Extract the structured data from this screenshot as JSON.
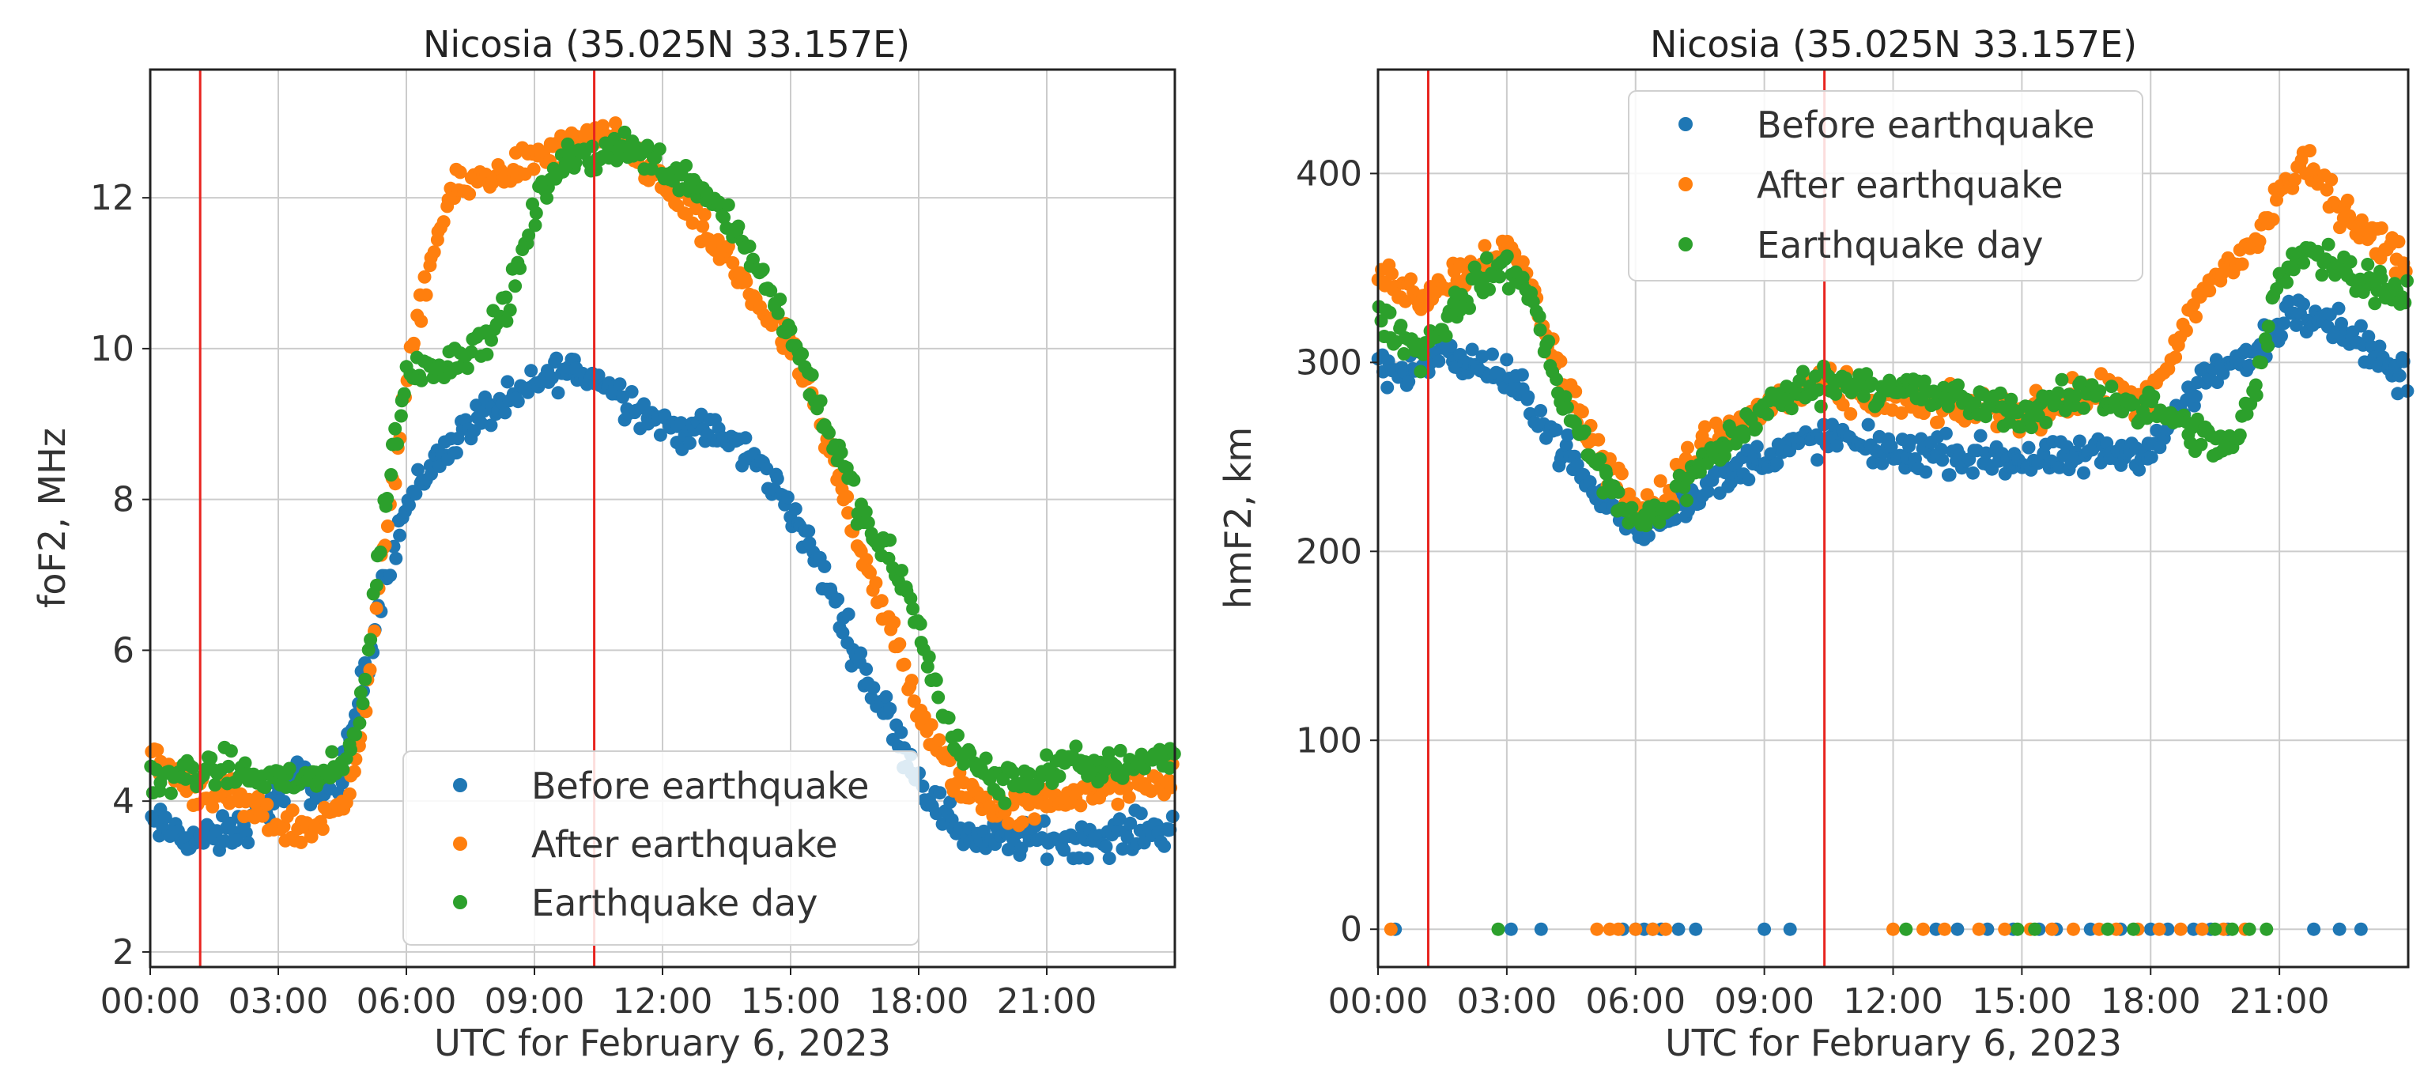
{
  "colors": {
    "before": "#1f77b4",
    "after": "#ff7f0e",
    "day": "#2ca02c",
    "event_line": "#e8241f",
    "grid": "#cccccc",
    "axes": "#222222"
  },
  "chart_data": [
    {
      "type": "scatter",
      "title": "Nicosia (35.025N 33.157E)",
      "xlabel": "UTC for February 6, 2023",
      "ylabel": "foF2, MHz",
      "xlim": [
        0,
        24
      ],
      "ylim": [
        1.8,
        13.7
      ],
      "x_ticks": [
        0,
        3,
        6,
        9,
        12,
        15,
        18,
        21
      ],
      "x_tick_labels": [
        "00:00",
        "03:00",
        "06:00",
        "09:00",
        "12:00",
        "15:00",
        "18:00",
        "21:00"
      ],
      "y_ticks": [
        2,
        4,
        6,
        8,
        10,
        12
      ],
      "y_tick_labels": [
        "2",
        "4",
        "6",
        "8",
        "10",
        "12"
      ],
      "grid": true,
      "legend_position": "lower-right",
      "vlines": [
        1.17,
        10.4
      ],
      "series": [
        {
          "name": "Before earthquake",
          "color_key": "before",
          "x": [
            0,
            0.5,
            1,
            1.5,
            2,
            2.5,
            3,
            3.5,
            4,
            4.5,
            5,
            5.5,
            6,
            6.5,
            7,
            7.5,
            8,
            8.5,
            9,
            9.5,
            10,
            10.5,
            11,
            11.5,
            12,
            12.5,
            13,
            13.5,
            14,
            14.5,
            15,
            15.5,
            16,
            16.5,
            17,
            17.5,
            18,
            18.5,
            19,
            19.5,
            20,
            20.5,
            21,
            21.5,
            22,
            22.5,
            23,
            23.5,
            24
          ],
          "y": [
            3.7,
            3.6,
            3.5,
            3.5,
            3.6,
            3.8,
            4.1,
            4.3,
            4.1,
            4.4,
            5.6,
            7.0,
            7.9,
            8.4,
            8.7,
            9.0,
            9.2,
            9.3,
            9.5,
            9.7,
            9.7,
            9.6,
            9.4,
            9.2,
            9.0,
            8.9,
            8.9,
            8.8,
            8.6,
            8.3,
            7.9,
            7.3,
            6.7,
            6.0,
            5.4,
            4.9,
            4.3,
            3.9,
            3.6,
            3.5,
            3.5,
            3.5,
            3.5,
            3.5,
            3.5,
            3.5,
            3.6,
            3.6,
            3.7
          ]
        },
        {
          "name": "After earthquake",
          "color_key": "after",
          "x": [
            0,
            0.5,
            1,
            1.5,
            2,
            2.5,
            3,
            3.5,
            4,
            4.5,
            5,
            5.5,
            6,
            6.5,
            7,
            7.5,
            8,
            8.5,
            9,
            9.5,
            10,
            10.5,
            11,
            11.5,
            12,
            12.5,
            13,
            13.5,
            14,
            14.5,
            15,
            15.5,
            16,
            16.5,
            17,
            17.5,
            18,
            18.5,
            19,
            19.5,
            20,
            20.5,
            21,
            21.5,
            22,
            22.5,
            23,
            23.5,
            24
          ],
          "y": [
            4.6,
            4.4,
            4.2,
            4.1,
            4.0,
            3.8,
            3.7,
            3.6,
            3.7,
            4.0,
            5.0,
            7.5,
            9.5,
            11.0,
            12.0,
            12.2,
            12.3,
            12.4,
            12.5,
            12.6,
            12.7,
            12.8,
            12.7,
            12.5,
            12.2,
            11.9,
            11.5,
            11.2,
            10.8,
            10.4,
            10.0,
            9.3,
            8.5,
            7.6,
            6.8,
            6.0,
            5.2,
            4.6,
            4.2,
            4.0,
            3.9,
            3.9,
            4.0,
            4.1,
            4.1,
            4.2,
            4.2,
            4.2,
            4.3
          ]
        },
        {
          "name": "Earthquake day",
          "color_key": "day",
          "x": [
            0,
            0.5,
            1,
            1.5,
            2,
            2.5,
            3,
            3.5,
            4,
            4.5,
            5,
            5.5,
            6,
            6.5,
            7,
            7.5,
            8,
            8.5,
            9,
            9.5,
            10,
            10.5,
            11,
            11.5,
            12,
            12.5,
            13,
            13.5,
            14,
            14.5,
            15,
            15.5,
            16,
            16.5,
            17,
            17.5,
            18,
            18.5,
            19,
            19.5,
            20,
            20.5,
            21,
            21.5,
            22,
            22.5,
            23,
            23.5,
            24
          ],
          "y": [
            4.3,
            4.3,
            4.4,
            4.4,
            4.4,
            4.3,
            4.3,
            4.3,
            4.3,
            4.4,
            5.4,
            8.0,
            9.6,
            9.8,
            9.8,
            10.0,
            10.2,
            10.8,
            11.8,
            12.4,
            12.5,
            12.6,
            12.7,
            12.6,
            12.4,
            12.3,
            12.1,
            11.8,
            11.3,
            10.8,
            10.2,
            9.5,
            8.8,
            8.0,
            7.4,
            7.1,
            6.3,
            5.3,
            4.6,
            4.4,
            4.2,
            4.3,
            4.4,
            4.5,
            4.4,
            4.5,
            4.5,
            4.6,
            4.6
          ]
        }
      ]
    },
    {
      "type": "scatter",
      "title": "Nicosia (35.025N 33.157E)",
      "xlabel": "UTC for February 6, 2023",
      "ylabel": "hmF2, km",
      "xlim": [
        0,
        24
      ],
      "ylim": [
        -20,
        455
      ],
      "x_ticks": [
        0,
        3,
        6,
        9,
        12,
        15,
        18,
        21
      ],
      "x_tick_labels": [
        "00:00",
        "03:00",
        "06:00",
        "09:00",
        "12:00",
        "15:00",
        "18:00",
        "21:00"
      ],
      "y_ticks": [
        0,
        100,
        200,
        300,
        400
      ],
      "y_tick_labels": [
        "0",
        "100",
        "200",
        "300",
        "400"
      ],
      "grid": true,
      "legend_position": "upper-center",
      "vlines": [
        1.17,
        10.4
      ],
      "series": [
        {
          "name": "Before earthquake",
          "color_key": "before",
          "x": [
            0,
            0.5,
            1,
            1.5,
            2,
            2.5,
            3,
            3.5,
            4,
            4.5,
            5,
            5.5,
            6,
            6.5,
            7,
            7.5,
            8,
            8.5,
            9,
            9.5,
            10,
            10.5,
            11,
            11.5,
            12,
            12.5,
            13,
            13.5,
            14,
            14.5,
            15,
            15.5,
            16,
            16.5,
            17,
            17.5,
            18,
            18.5,
            19,
            19.5,
            20,
            20.5,
            21,
            21.5,
            22,
            22.5,
            23,
            23.5,
            24
          ],
          "y": [
            300,
            295,
            300,
            305,
            300,
            298,
            290,
            280,
            265,
            248,
            232,
            222,
            212,
            215,
            225,
            232,
            238,
            245,
            250,
            254,
            258,
            260,
            258,
            255,
            253,
            252,
            252,
            250,
            250,
            250,
            248,
            247,
            248,
            250,
            252,
            252,
            255,
            268,
            285,
            295,
            300,
            305,
            320,
            330,
            325,
            318,
            310,
            298,
            290
          ]
        },
        {
          "name": "After earthquake",
          "color_key": "after",
          "x": [
            0,
            0.5,
            1,
            1.5,
            2,
            2.5,
            3,
            3.5,
            4,
            4.5,
            5,
            5.5,
            6,
            6.5,
            7,
            7.5,
            8,
            8.5,
            9,
            9.5,
            10,
            10.5,
            11,
            11.5,
            12,
            12.5,
            13,
            13.5,
            14,
            14.5,
            15,
            15.5,
            16,
            16.5,
            17,
            17.5,
            18,
            18.5,
            19,
            19.5,
            20,
            20.5,
            21,
            21.5,
            22,
            22.5,
            23,
            23.5,
            24
          ],
          "y": [
            345,
            340,
            335,
            342,
            350,
            355,
            360,
            345,
            310,
            282,
            258,
            240,
            225,
            225,
            240,
            255,
            262,
            268,
            275,
            282,
            285,
            287,
            283,
            280,
            280,
            278,
            277,
            276,
            275,
            275,
            272,
            276,
            280,
            283,
            282,
            280,
            280,
            300,
            328,
            345,
            355,
            365,
            390,
            405,
            395,
            380,
            370,
            360,
            350
          ]
        },
        {
          "name": "Earthquake day",
          "color_key": "day",
          "x": [
            0,
            0.5,
            1,
            1.5,
            2,
            2.5,
            3,
            3.5,
            4,
            4.5,
            5,
            5.5,
            6,
            6.5,
            7,
            7.5,
            8,
            8.5,
            9,
            9.5,
            10,
            10.5,
            11,
            11.5,
            12,
            12.5,
            13,
            13.5,
            14,
            14.5,
            15,
            15.5,
            16,
            16.5,
            17,
            17.5,
            18,
            18.5,
            19,
            19.5,
            20,
            20.5,
            21,
            21.5,
            22,
            22.5,
            23,
            23.5,
            24
          ],
          "y": [
            325,
            315,
            305,
            320,
            335,
            345,
            350,
            340,
            300,
            270,
            248,
            230,
            215,
            220,
            232,
            245,
            255,
            265,
            275,
            282,
            287,
            290,
            290,
            288,
            287,
            285,
            282,
            280,
            278,
            276,
            272,
            275,
            280,
            285,
            282,
            278,
            275,
            270,
            262,
            255,
            258,
            290,
            345,
            360,
            355,
            350,
            345,
            340,
            335
          ]
        }
      ],
      "zero_band": [
        {
          "name": "Before earthquake",
          "color_key": "before",
          "x": [
            0.4,
            3.1,
            3.8,
            5.7,
            6.0,
            6.2,
            6.4,
            6.6,
            7.0,
            7.4,
            9.0,
            9.6,
            13.0,
            13.5,
            14.2,
            14.8,
            15.4,
            15.8,
            16.6,
            17.3,
            18.0,
            18.4,
            19.0,
            19.4,
            19.8,
            21.8,
            22.4,
            22.9
          ]
        },
        {
          "name": "After earthquake",
          "color_key": "after",
          "x": [
            0.3,
            5.1,
            5.4,
            5.6,
            6.0,
            6.4,
            6.7,
            12.0,
            12.7,
            13.2,
            14.0,
            14.6,
            15.2,
            15.7,
            16.2,
            16.8,
            17.2,
            17.7,
            18.2,
            18.7,
            19.2,
            19.7,
            20.2
          ]
        },
        {
          "name": "Earthquake day",
          "color_key": "day",
          "x": [
            2.8,
            12.3,
            14.9,
            15.3,
            17.0,
            17.6,
            19.5,
            19.9,
            20.3,
            20.7
          ]
        }
      ]
    }
  ]
}
